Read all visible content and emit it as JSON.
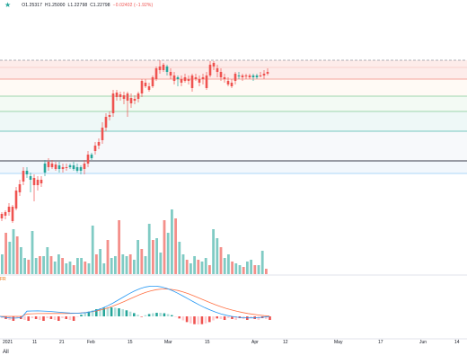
{
  "symbol_legend": {
    "star_icon": "star-icon",
    "open": "O1.25317",
    "high": "H1.25000",
    "low": "L1.22798",
    "close": "C1.22798",
    "change": "−0.02402 (−1.92%)"
  },
  "indicator_label": "FR",
  "scale_button": "All",
  "time_axis": [
    "2021",
    "11",
    "21",
    "Feb",
    "15",
    "Mar",
    "15",
    "Apr",
    "12",
    "May",
    "17",
    "Jun",
    "14"
  ],
  "colors": {
    "up": "#26a69a",
    "down": "#ef5350",
    "up_volume": "#80cbc4",
    "down_volume": "#f48f8a",
    "macd_line": "#2196f3",
    "signal_line": "#ff7043",
    "fib_line_1": "#f28b82",
    "fib_line_2": "#81c995",
    "fib_line_3": "#4db6ac",
    "fib_line_4": "#787b86",
    "fib_line_5": "#90caf9"
  },
  "chart_data": {
    "type": "candlestick",
    "time_axis_labels": [
      "2021",
      "11",
      "21",
      "Feb",
      "15",
      "Mar",
      "15",
      "Apr",
      "12",
      "May",
      "17",
      "Jun",
      "14"
    ],
    "last_bar": {
      "open": 1.25317,
      "high": 1.25,
      "low": 1.22798,
      "close": 1.22798,
      "change": -0.02402,
      "change_pct": -1.92
    },
    "candles_count": 64,
    "volume_shown": true,
    "macd_shown": true
  }
}
